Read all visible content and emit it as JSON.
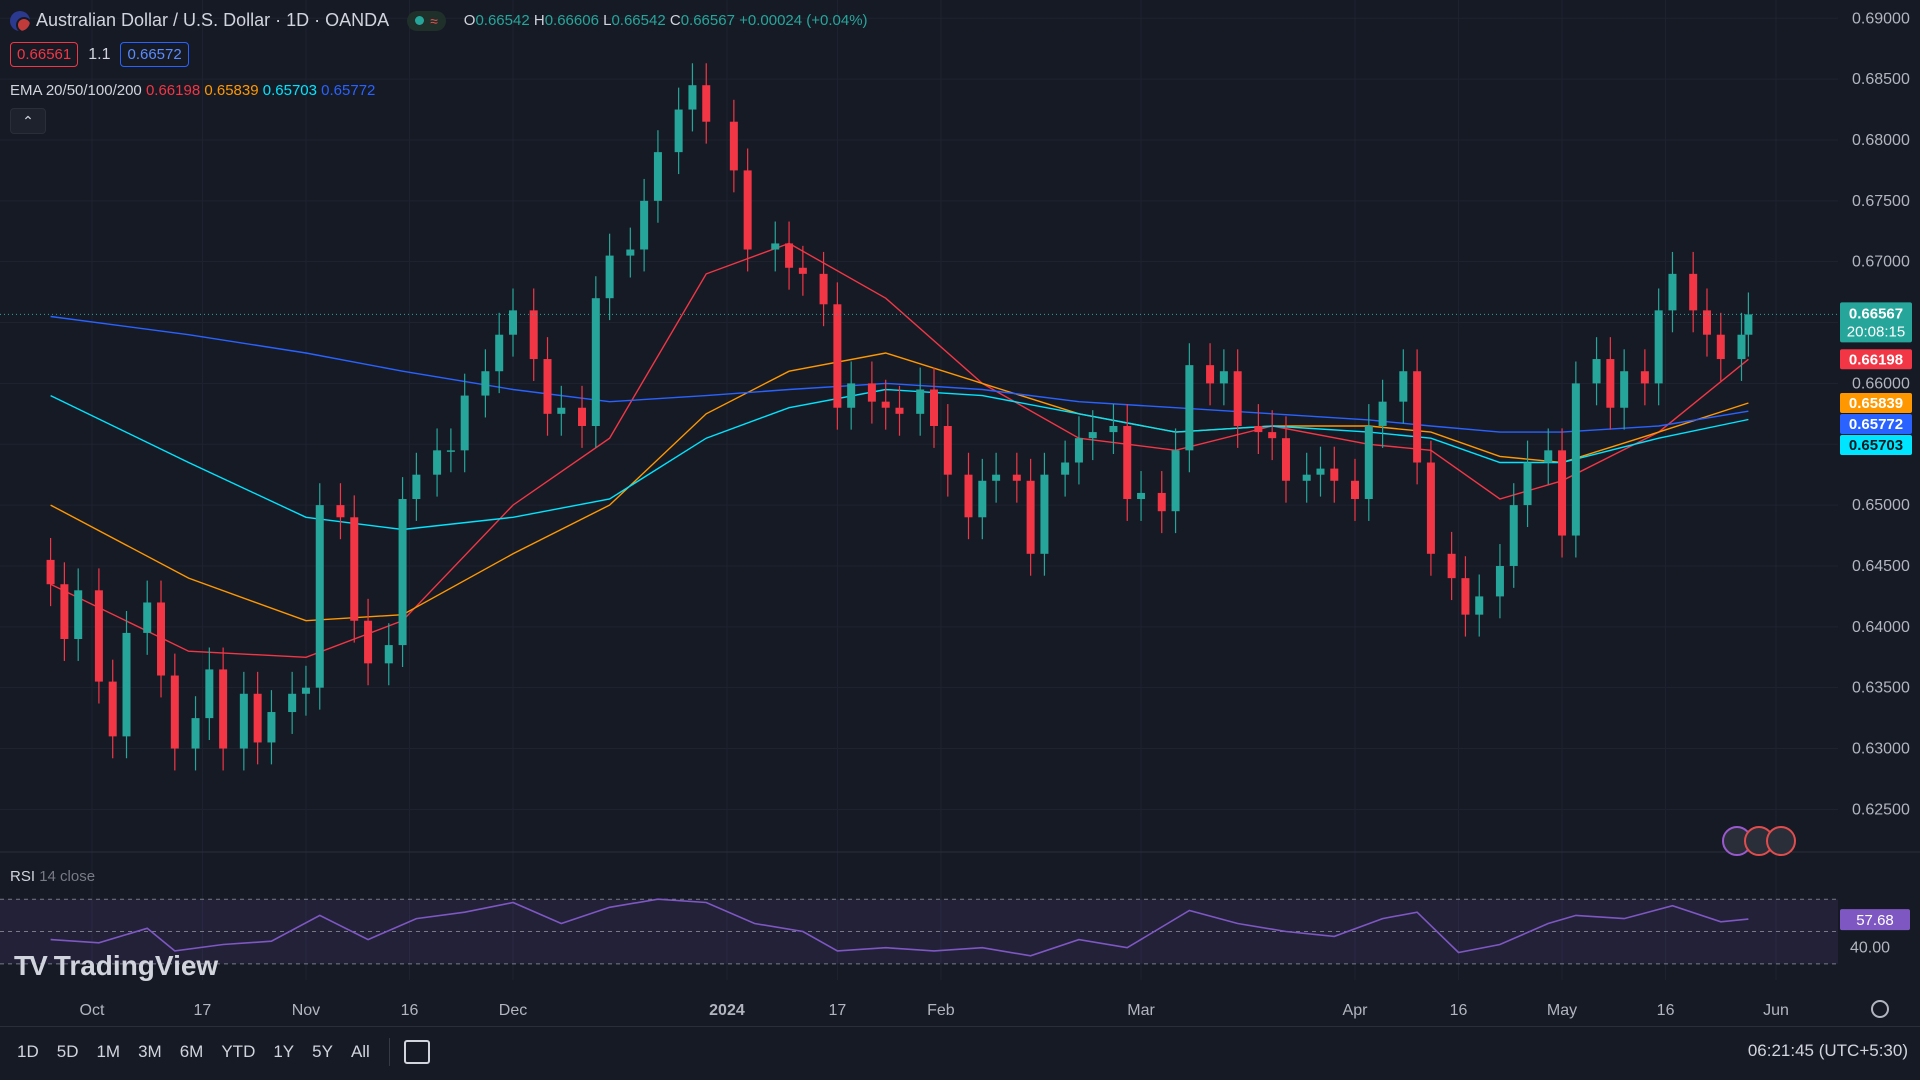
{
  "header": {
    "symbol_title": "Australian Dollar / U.S. Dollar · 1D · OANDA",
    "ohlc": {
      "o_label": "O",
      "o": "0.66542",
      "h_label": "H",
      "h": "0.66606",
      "l_label": "L",
      "l": "0.66542",
      "c_label": "C",
      "c": "0.66567",
      "change": "+0.00024 (+0.04%)"
    },
    "sell_price": "0.66561",
    "spread": "1.1",
    "buy_price": "0.66572",
    "ema_label": "EMA 20/50/100/200",
    "ema_values": [
      "0.66198",
      "0.65839",
      "0.65703",
      "0.65772"
    ]
  },
  "rsi_legend": {
    "name": "RSI",
    "params": "14 close",
    "value": "57.68"
  },
  "logo_text": "TradingView",
  "price_tags": {
    "last": "0.66567",
    "countdown": "20:08:15",
    "ema20": "0.66198",
    "ema50": "0.65839",
    "ema200": "0.65772",
    "ema100": "0.65703"
  },
  "timeframes": [
    "1D",
    "5D",
    "1M",
    "3M",
    "6M",
    "YTD",
    "1Y",
    "5Y",
    "All"
  ],
  "clock": "06:21:45 (UTC+5:30)",
  "colors": {
    "up": "#26a69a",
    "down": "#f23645",
    "ema20": "#f23645",
    "ema50": "#ff9800",
    "ema100": "#00e5ff",
    "ema200": "#2962ff",
    "rsi": "#7e57c2",
    "bg": "#161a25"
  },
  "chart_data": {
    "type": "candlestick",
    "title": "Australian Dollar / U.S. Dollar · 1D · OANDA",
    "y_ticks": [
      "0.69000",
      "0.68500",
      "0.68000",
      "0.67500",
      "0.67000",
      "0.66500",
      "0.66000",
      "0.65500",
      "0.65000",
      "0.64500",
      "0.64000",
      "0.63500",
      "0.63000",
      "0.62500"
    ],
    "ylim": [
      0.6215,
      0.6915
    ],
    "x_labels": [
      "Oct",
      "17",
      "Nov",
      "16",
      "Dec",
      "2024",
      "17",
      "Feb",
      "Mar",
      "Apr",
      "16",
      "May",
      "16",
      "Jun"
    ],
    "x_label_dates": [
      "2023-10-01",
      "2023-10-17",
      "2023-11-01",
      "2023-11-16",
      "2023-12-01",
      "2024-01-01",
      "2024-01-17",
      "2024-02-01",
      "2024-03-01",
      "2024-04-01",
      "2024-04-16",
      "2024-05-01",
      "2024-05-16",
      "2024-06-01"
    ],
    "candles": [
      {
        "d": "2023-09-25",
        "c": 0.6435
      },
      {
        "d": "2023-09-27",
        "c": 0.639
      },
      {
        "d": "2023-09-29",
        "c": 0.643
      },
      {
        "d": "2023-10-02",
        "c": 0.6355
      },
      {
        "d": "2023-10-04",
        "c": 0.631
      },
      {
        "d": "2023-10-06",
        "c": 0.6395
      },
      {
        "d": "2023-10-09",
        "c": 0.642
      },
      {
        "d": "2023-10-11",
        "c": 0.636
      },
      {
        "d": "2023-10-13",
        "c": 0.63
      },
      {
        "d": "2023-10-16",
        "c": 0.6325
      },
      {
        "d": "2023-10-18",
        "c": 0.6365
      },
      {
        "d": "2023-10-20",
        "c": 0.63
      },
      {
        "d": "2023-10-23",
        "c": 0.6345
      },
      {
        "d": "2023-10-25",
        "c": 0.6305
      },
      {
        "d": "2023-10-27",
        "c": 0.633
      },
      {
        "d": "2023-10-30",
        "c": 0.6345
      },
      {
        "d": "2023-11-01",
        "c": 0.635
      },
      {
        "d": "2023-11-03",
        "c": 0.65
      },
      {
        "d": "2023-11-06",
        "c": 0.649
      },
      {
        "d": "2023-11-08",
        "c": 0.6405
      },
      {
        "d": "2023-11-10",
        "c": 0.637
      },
      {
        "d": "2023-11-13",
        "c": 0.6385
      },
      {
        "d": "2023-11-15",
        "c": 0.6505
      },
      {
        "d": "2023-11-17",
        "c": 0.6525
      },
      {
        "d": "2023-11-20",
        "c": 0.6545
      },
      {
        "d": "2023-11-22",
        "c": 0.6545
      },
      {
        "d": "2023-11-24",
        "c": 0.659
      },
      {
        "d": "2023-11-27",
        "c": 0.661
      },
      {
        "d": "2023-11-29",
        "c": 0.664
      },
      {
        "d": "2023-12-01",
        "c": 0.666
      },
      {
        "d": "2023-12-04",
        "c": 0.662
      },
      {
        "d": "2023-12-06",
        "c": 0.6575
      },
      {
        "d": "2023-12-08",
        "c": 0.658
      },
      {
        "d": "2023-12-11",
        "c": 0.6565
      },
      {
        "d": "2023-12-13",
        "c": 0.667
      },
      {
        "d": "2023-12-15",
        "c": 0.6705
      },
      {
        "d": "2023-12-18",
        "c": 0.671
      },
      {
        "d": "2023-12-20",
        "c": 0.675
      },
      {
        "d": "2023-12-22",
        "c": 0.679
      },
      {
        "d": "2023-12-25",
        "c": 0.6825
      },
      {
        "d": "2023-12-27",
        "c": 0.6845
      },
      {
        "d": "2023-12-29",
        "c": 0.6815
      },
      {
        "d": "2024-01-02",
        "c": 0.6775
      },
      {
        "d": "2024-01-04",
        "c": 0.671
      },
      {
        "d": "2024-01-08",
        "c": 0.6715
      },
      {
        "d": "2024-01-10",
        "c": 0.6695
      },
      {
        "d": "2024-01-12",
        "c": 0.669
      },
      {
        "d": "2024-01-15",
        "c": 0.6665
      },
      {
        "d": "2024-01-17",
        "c": 0.658
      },
      {
        "d": "2024-01-19",
        "c": 0.66
      },
      {
        "d": "2024-01-22",
        "c": 0.6585
      },
      {
        "d": "2024-01-24",
        "c": 0.658
      },
      {
        "d": "2024-01-26",
        "c": 0.6575
      },
      {
        "d": "2024-01-29",
        "c": 0.6595
      },
      {
        "d": "2024-01-31",
        "c": 0.6565
      },
      {
        "d": "2024-02-02",
        "c": 0.6525
      },
      {
        "d": "2024-02-05",
        "c": 0.649
      },
      {
        "d": "2024-02-07",
        "c": 0.652
      },
      {
        "d": "2024-02-09",
        "c": 0.6525
      },
      {
        "d": "2024-02-12",
        "c": 0.652
      },
      {
        "d": "2024-02-14",
        "c": 0.646
      },
      {
        "d": "2024-02-16",
        "c": 0.6525
      },
      {
        "d": "2024-02-19",
        "c": 0.6535
      },
      {
        "d": "2024-02-21",
        "c": 0.6555
      },
      {
        "d": "2024-02-23",
        "c": 0.656
      },
      {
        "d": "2024-02-26",
        "c": 0.6565
      },
      {
        "d": "2024-02-28",
        "c": 0.6505
      },
      {
        "d": "2024-03-01",
        "c": 0.651
      },
      {
        "d": "2024-03-04",
        "c": 0.6495
      },
      {
        "d": "2024-03-06",
        "c": 0.6545
      },
      {
        "d": "2024-03-08",
        "c": 0.6615
      },
      {
        "d": "2024-03-11",
        "c": 0.66
      },
      {
        "d": "2024-03-13",
        "c": 0.661
      },
      {
        "d": "2024-03-15",
        "c": 0.6565
      },
      {
        "d": "2024-03-18",
        "c": 0.656
      },
      {
        "d": "2024-03-20",
        "c": 0.6555
      },
      {
        "d": "2024-03-22",
        "c": 0.652
      },
      {
        "d": "2024-03-25",
        "c": 0.6525
      },
      {
        "d": "2024-03-27",
        "c": 0.653
      },
      {
        "d": "2024-03-29",
        "c": 0.652
      },
      {
        "d": "2024-04-01",
        "c": 0.6505
      },
      {
        "d": "2024-04-03",
        "c": 0.6565
      },
      {
        "d": "2024-04-05",
        "c": 0.6585
      },
      {
        "d": "2024-04-08",
        "c": 0.661
      },
      {
        "d": "2024-04-10",
        "c": 0.6535
      },
      {
        "d": "2024-04-12",
        "c": 0.646
      },
      {
        "d": "2024-04-15",
        "c": 0.644
      },
      {
        "d": "2024-04-17",
        "c": 0.641
      },
      {
        "d": "2024-04-19",
        "c": 0.6425
      },
      {
        "d": "2024-04-22",
        "c": 0.645
      },
      {
        "d": "2024-04-24",
        "c": 0.65
      },
      {
        "d": "2024-04-26",
        "c": 0.6535
      },
      {
        "d": "2024-04-29",
        "c": 0.6545
      },
      {
        "d": "2024-05-01",
        "c": 0.6475
      },
      {
        "d": "2024-05-03",
        "c": 0.66
      },
      {
        "d": "2024-05-06",
        "c": 0.662
      },
      {
        "d": "2024-05-08",
        "c": 0.658
      },
      {
        "d": "2024-05-10",
        "c": 0.661
      },
      {
        "d": "2024-05-13",
        "c": 0.66
      },
      {
        "d": "2024-05-15",
        "c": 0.666
      },
      {
        "d": "2024-05-17",
        "c": 0.669
      },
      {
        "d": "2024-05-20",
        "c": 0.666
      },
      {
        "d": "2024-05-22",
        "c": 0.664
      },
      {
        "d": "2024-05-24",
        "c": 0.662
      },
      {
        "d": "2024-05-27",
        "c": 0.664
      },
      {
        "d": "2024-05-28",
        "c": 0.66567
      }
    ],
    "ema_series": [
      {
        "name": "EMA 20",
        "color": "#f23645",
        "values": [
          [
            "2023-09-25",
            0.6435
          ],
          [
            "2023-10-15",
            0.638
          ],
          [
            "2023-11-01",
            0.6375
          ],
          [
            "2023-11-15",
            0.6405
          ],
          [
            "2023-12-01",
            0.65
          ],
          [
            "2023-12-15",
            0.6555
          ],
          [
            "2023-12-29",
            0.669
          ],
          [
            "2024-01-10",
            0.6715
          ],
          [
            "2024-01-24",
            0.667
          ],
          [
            "2024-02-07",
            0.66
          ],
          [
            "2024-02-21",
            0.6555
          ],
          [
            "2024-03-06",
            0.6545
          ],
          [
            "2024-03-20",
            0.6565
          ],
          [
            "2024-04-03",
            0.655
          ],
          [
            "2024-04-12",
            0.6545
          ],
          [
            "2024-04-22",
            0.6505
          ],
          [
            "2024-05-01",
            0.652
          ],
          [
            "2024-05-15",
            0.656
          ],
          [
            "2024-05-28",
            0.66198
          ]
        ]
      },
      {
        "name": "EMA 50",
        "color": "#ff9800",
        "values": [
          [
            "2023-09-25",
            0.65
          ],
          [
            "2023-10-15",
            0.644
          ],
          [
            "2023-11-01",
            0.6405
          ],
          [
            "2023-11-15",
            0.641
          ],
          [
            "2023-12-01",
            0.646
          ],
          [
            "2023-12-15",
            0.65
          ],
          [
            "2023-12-29",
            0.6575
          ],
          [
            "2024-01-10",
            0.661
          ],
          [
            "2024-01-24",
            0.6625
          ],
          [
            "2024-02-07",
            0.66
          ],
          [
            "2024-02-21",
            0.6575
          ],
          [
            "2024-03-06",
            0.656
          ],
          [
            "2024-03-20",
            0.6565
          ],
          [
            "2024-04-03",
            0.6565
          ],
          [
            "2024-04-12",
            0.656
          ],
          [
            "2024-04-22",
            0.654
          ],
          [
            "2024-05-01",
            0.6535
          ],
          [
            "2024-05-15",
            0.656
          ],
          [
            "2024-05-28",
            0.65839
          ]
        ]
      },
      {
        "name": "EMA 100",
        "color": "#00e5ff",
        "values": [
          [
            "2023-09-25",
            0.659
          ],
          [
            "2023-10-15",
            0.6535
          ],
          [
            "2023-11-01",
            0.649
          ],
          [
            "2023-11-15",
            0.648
          ],
          [
            "2023-12-01",
            0.649
          ],
          [
            "2023-12-15",
            0.6505
          ],
          [
            "2023-12-29",
            0.6555
          ],
          [
            "2024-01-10",
            0.658
          ],
          [
            "2024-01-24",
            0.6595
          ],
          [
            "2024-02-07",
            0.659
          ],
          [
            "2024-02-21",
            0.6575
          ],
          [
            "2024-03-06",
            0.656
          ],
          [
            "2024-03-20",
            0.6565
          ],
          [
            "2024-04-03",
            0.656
          ],
          [
            "2024-04-12",
            0.6555
          ],
          [
            "2024-04-22",
            0.6535
          ],
          [
            "2024-05-01",
            0.6535
          ],
          [
            "2024-05-15",
            0.6555
          ],
          [
            "2024-05-28",
            0.65703
          ]
        ]
      },
      {
        "name": "EMA 200",
        "color": "#2962ff",
        "values": [
          [
            "2023-09-25",
            0.6655
          ],
          [
            "2023-10-15",
            0.664
          ],
          [
            "2023-11-01",
            0.6625
          ],
          [
            "2023-11-15",
            0.661
          ],
          [
            "2023-12-01",
            0.6595
          ],
          [
            "2023-12-15",
            0.6585
          ],
          [
            "2023-12-29",
            0.659
          ],
          [
            "2024-01-10",
            0.6595
          ],
          [
            "2024-01-24",
            0.66
          ],
          [
            "2024-02-07",
            0.6595
          ],
          [
            "2024-02-21",
            0.6585
          ],
          [
            "2024-03-06",
            0.658
          ],
          [
            "2024-03-20",
            0.6575
          ],
          [
            "2024-04-03",
            0.657
          ],
          [
            "2024-04-12",
            0.6565
          ],
          [
            "2024-04-22",
            0.656
          ],
          [
            "2024-05-01",
            0.656
          ],
          [
            "2024-05-15",
            0.6565
          ],
          [
            "2024-05-28",
            0.65772
          ]
        ]
      }
    ],
    "rsi": {
      "name": "RSI 14 close",
      "y_tick": "40.00",
      "bands": [
        70,
        50,
        30
      ],
      "values": [
        [
          "2023-09-25",
          45
        ],
        [
          "2023-10-02",
          43
        ],
        [
          "2023-10-09",
          52
        ],
        [
          "2023-10-13",
          38
        ],
        [
          "2023-10-20",
          42
        ],
        [
          "2023-10-27",
          44
        ],
        [
          "2023-11-03",
          60
        ],
        [
          "2023-11-10",
          45
        ],
        [
          "2023-11-17",
          58
        ],
        [
          "2023-11-24",
          62
        ],
        [
          "2023-12-01",
          68
        ],
        [
          "2023-12-08",
          55
        ],
        [
          "2023-12-15",
          65
        ],
        [
          "2023-12-22",
          70
        ],
        [
          "2023-12-29",
          68
        ],
        [
          "2024-01-05",
          55
        ],
        [
          "2024-01-12",
          50
        ],
        [
          "2024-01-17",
          38
        ],
        [
          "2024-01-24",
          40
        ],
        [
          "2024-01-31",
          38
        ],
        [
          "2024-02-07",
          40
        ],
        [
          "2024-02-14",
          35
        ],
        [
          "2024-02-21",
          45
        ],
        [
          "2024-02-28",
          40
        ],
        [
          "2024-03-08",
          63
        ],
        [
          "2024-03-15",
          55
        ],
        [
          "2024-03-22",
          50
        ],
        [
          "2024-03-29",
          47
        ],
        [
          "2024-04-05",
          58
        ],
        [
          "2024-04-10",
          62
        ],
        [
          "2024-04-16",
          37
        ],
        [
          "2024-04-22",
          42
        ],
        [
          "2024-04-29",
          55
        ],
        [
          "2024-05-03",
          60
        ],
        [
          "2024-05-10",
          58
        ],
        [
          "2024-05-17",
          66
        ],
        [
          "2024-05-24",
          56
        ],
        [
          "2024-05-28",
          57.68
        ]
      ]
    }
  }
}
